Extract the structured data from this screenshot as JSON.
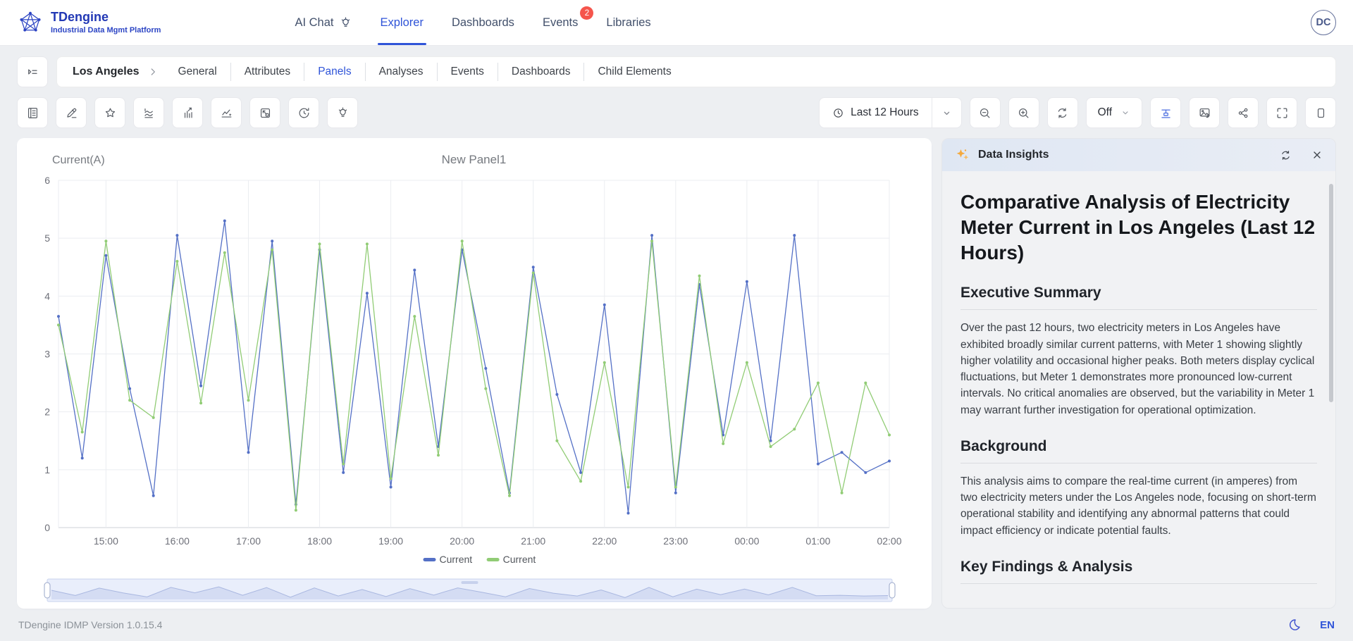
{
  "colors": {
    "accent": "#2f54d8",
    "series_blue": "#5470c6",
    "series_green": "#91cc75",
    "badge_red": "#f5554c",
    "sparkle_gold": "#f4a93d"
  },
  "nav": {
    "brand": {
      "title": "TDengine",
      "subtitle": "Industrial Data Mgmt Platform"
    },
    "items": [
      {
        "label": "AI Chat"
      },
      {
        "label": "Explorer"
      },
      {
        "label": "Dashboards"
      },
      {
        "label": "Events",
        "badge": "2"
      },
      {
        "label": "Libraries"
      }
    ],
    "avatar": "DC"
  },
  "breadcrumb": {
    "node": "Los Angeles",
    "tabs": [
      "General",
      "Attributes",
      "Panels",
      "Analyses",
      "Events",
      "Dashboards",
      "Child Elements"
    ],
    "active_tab": "Panels"
  },
  "toolbar": {
    "time_range": "Last 12 Hours",
    "auto_refresh": "Off"
  },
  "icons": {
    "nav": [
      "bulb-icon"
    ],
    "toolbar_left": [
      "notebook-icon",
      "pencil-icon",
      "star-icon",
      "line-chart-icon",
      "bar-chart-icon",
      "trend-sparkle-icon",
      "resize-icon",
      "history-icon",
      "bulb-icon"
    ],
    "toolbar_right": [
      "clock-icon",
      "chevron-down-icon",
      "zoom-out-icon",
      "zoom-in-icon",
      "refresh-icon",
      "chevron-down-icon",
      "insights-panel-icon",
      "export-image-icon",
      "share-icon",
      "fullscreen-icon",
      "panel-right-icon"
    ],
    "insights_header": [
      "sparkles-icon",
      "refresh-icon",
      "close-icon"
    ],
    "footer": [
      "moon-icon"
    ]
  },
  "chart_data": {
    "type": "line",
    "title": "New Panel1",
    "ylabel": "Current(A)",
    "ylim": [
      0,
      6
    ],
    "y_ticks": [
      0,
      1,
      2,
      3,
      4,
      5,
      6
    ],
    "x": [
      "14:20",
      "14:40",
      "15:00",
      "15:20",
      "15:40",
      "16:00",
      "16:20",
      "16:40",
      "17:00",
      "17:20",
      "17:40",
      "18:00",
      "18:20",
      "18:40",
      "19:00",
      "19:20",
      "19:40",
      "20:00",
      "20:20",
      "20:40",
      "21:00",
      "21:20",
      "21:40",
      "22:00",
      "22:20",
      "22:40",
      "23:00",
      "23:20",
      "23:40",
      "00:00",
      "00:20",
      "00:40",
      "01:00",
      "01:20",
      "01:40",
      "02:00"
    ],
    "x_tick_labels": [
      "15:00",
      "16:00",
      "17:00",
      "18:00",
      "19:00",
      "20:00",
      "21:00",
      "22:00",
      "23:00",
      "00:00",
      "01:00",
      "02:00"
    ],
    "grid": true,
    "legend_position": "bottom",
    "has_datazoom_slider": true,
    "series": [
      {
        "name": "Current",
        "color": "#5470c6",
        "values": [
          3.65,
          1.2,
          4.7,
          2.4,
          0.55,
          5.05,
          2.45,
          5.3,
          1.3,
          4.95,
          0.4,
          4.8,
          0.95,
          4.05,
          0.7,
          4.45,
          1.4,
          4.8,
          2.75,
          0.6,
          4.5,
          2.3,
          0.95,
          3.85,
          0.25,
          5.05,
          0.6,
          4.2,
          1.6,
          4.25,
          1.5,
          5.05,
          1.1,
          1.3,
          0.95,
          1.15
        ]
      },
      {
        "name": "Current",
        "color": "#91cc75",
        "values": [
          3.5,
          1.65,
          4.95,
          2.2,
          1.9,
          4.6,
          2.15,
          4.75,
          2.2,
          4.8,
          0.3,
          4.9,
          1.1,
          4.9,
          0.85,
          3.65,
          1.25,
          4.95,
          2.4,
          0.55,
          4.4,
          1.5,
          0.8,
          2.85,
          0.7,
          4.95,
          0.7,
          4.35,
          1.45,
          2.85,
          1.4,
          1.7,
          2.5,
          0.6,
          2.5,
          1.6
        ]
      }
    ]
  },
  "insights": {
    "panel_title": "Data Insights",
    "heading": "Comparative Analysis of Electricity Meter Current in Los Angeles (Last 12 Hours)",
    "sections": [
      {
        "heading": "Executive Summary",
        "body": "Over the past 12 hours, two electricity meters in Los Angeles have exhibited broadly similar current patterns, with Meter 1 showing slightly higher volatility and occasional higher peaks. Both meters display cyclical fluctuations, but Meter 1 demonstrates more pronounced low-current intervals. No critical anomalies are observed, but the variability in Meter 1 may warrant further investigation for operational optimization."
      },
      {
        "heading": "Background",
        "body": "This analysis aims to compare the real-time current (in amperes) from two electricity meters under the Los Angeles node, focusing on short-term operational stability and identifying any abnormal patterns that could impact efficiency or indicate potential faults."
      },
      {
        "heading": "Key Findings & Analysis",
        "body": ""
      }
    ]
  },
  "footer": {
    "version": "TDengine IDMP Version 1.0.15.4",
    "lang": "EN"
  }
}
